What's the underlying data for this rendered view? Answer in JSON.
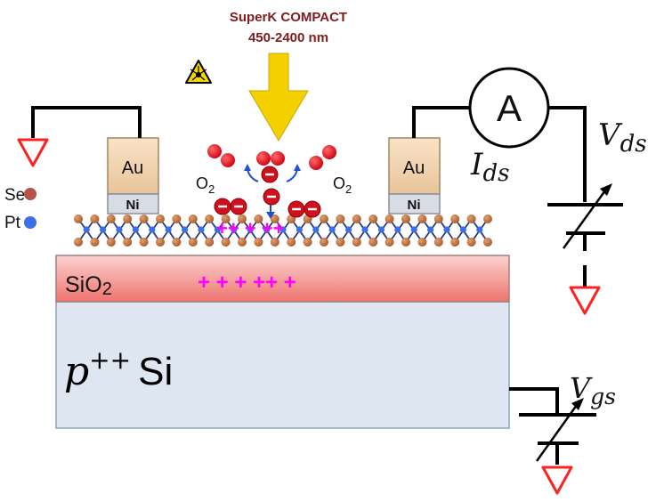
{
  "laser": {
    "title": "SuperK COMPACT",
    "range": "450-2400 nm",
    "title_color": "#7f1d1d"
  },
  "legend": [
    {
      "label": "Se",
      "color": "#b5524a"
    },
    {
      "label": "Pt",
      "color": "#3b6fe8"
    }
  ],
  "electrodes": {
    "top": "Au",
    "bottom": "Ni"
  },
  "molecules": {
    "label": "O",
    "subscript": "2"
  },
  "layers": {
    "oxide": "SiO",
    "oxide_sub": "2",
    "substrate_var": "p",
    "substrate_sup": "++",
    "substrate_name": "Si"
  },
  "charges": {
    "oxide": "+ + + ++ +",
    "channel": "++ + ++"
  },
  "circuit": {
    "ammeter": "A",
    "vds": "V",
    "vds_sub": "ds",
    "ids": "I",
    "ids_sub": "ds",
    "vgs": "V",
    "vgs_sub": "gs"
  },
  "colors": {
    "laser_arrow": "#f5d000",
    "ground": "#ff2020",
    "magenta": "#ff00ff",
    "oxygen": "#e8141c",
    "electron": "#d0101c",
    "oxide_top": "#fbd0cc",
    "oxide_bottom": "#ef7a74",
    "substrate": "#dde6f1",
    "au": "#f5dcc0",
    "ni": "#d8dce4"
  }
}
